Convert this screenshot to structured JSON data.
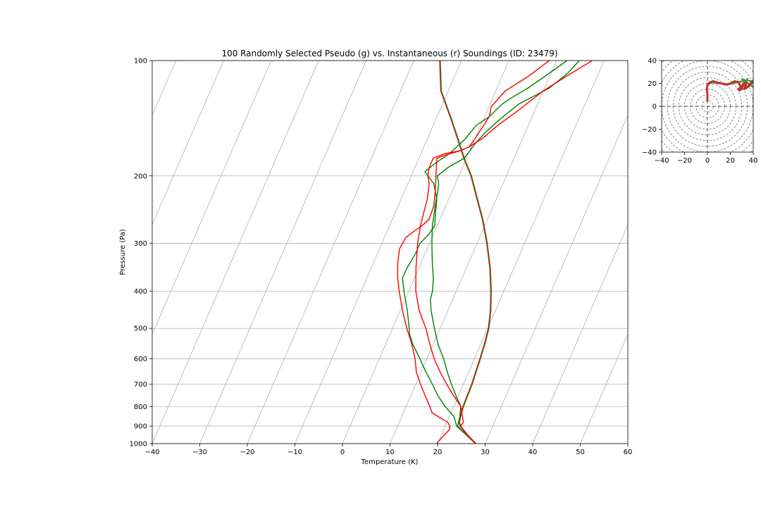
{
  "chart_data": [
    {
      "type": "line",
      "subtype": "skew-t",
      "title": "100 Randomly Selected Pseudo (g) vs. Instantaneous (r) Soundings (ID: 23479)",
      "xlabel": "Temperature (K)",
      "ylabel": "Pressure (Pa)",
      "xlim": [
        -40,
        60
      ],
      "ylim": [
        1000,
        100
      ],
      "yscale": "log",
      "xticks": [
        -40,
        -30,
        -20,
        -10,
        0,
        10,
        20,
        30,
        40,
        50,
        60
      ],
      "yticks": [
        1000,
        900,
        800,
        700,
        600,
        500,
        400,
        300,
        200,
        100
      ],
      "grid": true,
      "colors": {
        "pseudo": "#008000",
        "instantaneous": "#ff0000",
        "grid": "#b0b0b0"
      },
      "series": [
        {
          "key": "parcel",
          "style": "dashed",
          "points": [
            [
              1000,
              28
            ],
            [
              950,
              25.5
            ],
            [
              900,
              23.2
            ],
            [
              880,
              22.6
            ],
            [
              850,
              22.3
            ],
            [
              800,
              22.0
            ],
            [
              750,
              21.9
            ],
            [
              700,
              21.8
            ],
            [
              650,
              21.5
            ],
            [
              600,
              21.2
            ],
            [
              550,
              20.8
            ],
            [
              500,
              20.2
            ],
            [
              450,
              19.0
            ],
            [
              400,
              17.3
            ],
            [
              350,
              15.1
            ],
            [
              300,
              12.1
            ],
            [
              260,
              9.0
            ],
            [
              230,
              6.0
            ],
            [
              200,
              2.6
            ],
            [
              180,
              -0.5
            ],
            [
              160,
              -3.6
            ],
            [
              140,
              -7.2
            ],
            [
              120,
              -11.5
            ],
            [
              100,
              -14.5
            ]
          ]
        },
        {
          "key": "pseudo-1",
          "points": [
            [
              1000,
              28
            ],
            [
              950,
              25.3
            ],
            [
              900,
              22.6
            ],
            [
              850,
              22.2
            ],
            [
              800,
              21.5
            ],
            [
              750,
              19.5
            ],
            [
              700,
              17.5
            ],
            [
              650,
              15.5
            ],
            [
              600,
              13.5
            ],
            [
              550,
              11.0
            ],
            [
              500,
              8.8
            ],
            [
              450,
              6.5
            ],
            [
              420,
              5.3
            ],
            [
              400,
              5.0
            ],
            [
              370,
              4.0
            ],
            [
              340,
              2.5
            ],
            [
              300,
              0.5
            ],
            [
              270,
              -1.0
            ],
            [
              240,
              -2.2
            ],
            [
              220,
              -3.0
            ],
            [
              210,
              -3.5
            ],
            [
              200,
              -4.5
            ],
            [
              190,
              -3.0
            ],
            [
              180,
              -0.5
            ],
            [
              165,
              0.5
            ],
            [
              155,
              1.5
            ],
            [
              145,
              3.0
            ],
            [
              130,
              6.0
            ],
            [
              118,
              11.0
            ],
            [
              108,
              13.5
            ],
            [
              100,
              14.8
            ]
          ]
        },
        {
          "key": "pseudo-2",
          "points": [
            [
              1000,
              28
            ],
            [
              950,
              25.3
            ],
            [
              900,
              22.4
            ],
            [
              850,
              21.0
            ],
            [
              800,
              18.2
            ],
            [
              750,
              15.7
            ],
            [
              700,
              13.5
            ],
            [
              650,
              11.0
            ],
            [
              600,
              8.5
            ],
            [
              550,
              5.7
            ],
            [
              520,
              4.2
            ],
            [
              500,
              3.5
            ],
            [
              450,
              1.5
            ],
            [
              400,
              -1.0
            ],
            [
              370,
              -2.5
            ],
            [
              350,
              -2.5
            ],
            [
              320,
              -2.0
            ],
            [
              300,
              -2.0
            ],
            [
              285,
              -1.0
            ],
            [
              270,
              -0.5
            ],
            [
              250,
              -1.5
            ],
            [
              230,
              -2.5
            ],
            [
              210,
              -4.5
            ],
            [
              195,
              -7.5
            ],
            [
              185,
              -6.0
            ],
            [
              175,
              -4.0
            ],
            [
              160,
              -2.0
            ],
            [
              148,
              -1.0
            ],
            [
              140,
              1.0
            ],
            [
              130,
              2.5
            ],
            [
              125,
              4.0
            ],
            [
              118,
              6.5
            ],
            [
              110,
              9.0
            ],
            [
              100,
              12.2
            ]
          ]
        },
        {
          "key": "inst-1",
          "points": [
            [
              1000,
              19.8
            ],
            [
              950,
              20.6
            ],
            [
              920,
              21.2
            ],
            [
              900,
              21.0
            ],
            [
              880,
              20.2
            ],
            [
              860,
              18.5
            ],
            [
              830,
              16.0
            ],
            [
              800,
              15.0
            ],
            [
              750,
              13.0
            ],
            [
              700,
              11.0
            ],
            [
              650,
              9.0
            ],
            [
              600,
              7.5
            ],
            [
              550,
              5.5
            ],
            [
              500,
              3.0
            ],
            [
              450,
              0.5
            ],
            [
              400,
              -2.0
            ],
            [
              370,
              -3.5
            ],
            [
              340,
              -4.8
            ],
            [
              310,
              -5.8
            ],
            [
              290,
              -5.5
            ],
            [
              280,
              -4.5
            ],
            [
              270,
              -3.2
            ],
            [
              260,
              -2.3
            ],
            [
              240,
              -2.5
            ],
            [
              220,
              -3.5
            ],
            [
              200,
              -4.8
            ],
            [
              190,
              -5.5
            ],
            [
              180,
              -6.2
            ],
            [
              177,
              -5.0
            ],
            [
              172,
              -2.0
            ],
            [
              168,
              -0.5
            ],
            [
              160,
              0
            ],
            [
              150,
              0.5
            ],
            [
              140,
              1.0
            ],
            [
              132,
              0.5
            ],
            [
              120,
              2.0
            ],
            [
              110,
              5.5
            ],
            [
              100,
              8.5
            ]
          ]
        },
        {
          "key": "inst-2",
          "points": [
            [
              1000,
              28
            ],
            [
              950,
              25.5
            ],
            [
              900,
              23.2
            ],
            [
              880,
              23.5
            ],
            [
              860,
              23.0
            ],
            [
              800,
              21.5
            ],
            [
              750,
              19.0
            ],
            [
              700,
              16.5
            ],
            [
              650,
              14.0
            ],
            [
              600,
              11.5
            ],
            [
              550,
              9.3
            ],
            [
              500,
              7.0
            ],
            [
              450,
              4.0
            ],
            [
              400,
              1.5
            ],
            [
              350,
              -0.5
            ],
            [
              300,
              -2.5
            ],
            [
              270,
              -3.5
            ],
            [
              250,
              -4.0
            ],
            [
              230,
              -4.5
            ],
            [
              210,
              -5.5
            ],
            [
              200,
              -6.5
            ],
            [
              190,
              -7.0
            ],
            [
              180,
              -7.0
            ],
            [
              175,
              -5.0
            ],
            [
              172,
              -2.0
            ],
            [
              168,
              -0.5
            ],
            [
              160,
              1.5
            ],
            [
              148,
              3.5
            ],
            [
              135,
              6.5
            ],
            [
              120,
              10.0
            ],
            [
              110,
              13.5
            ],
            [
              100,
              17.5
            ]
          ]
        }
      ]
    },
    {
      "type": "line",
      "subtype": "hodograph",
      "xlim": [
        -40,
        40
      ],
      "ylim": [
        -40,
        40
      ],
      "xticks": [
        -40,
        -20,
        0,
        20,
        40
      ],
      "yticks": [
        -40,
        -20,
        0,
        20,
        40
      ],
      "range_rings": [
        5,
        10,
        15,
        20,
        25,
        30,
        35,
        40,
        45,
        50,
        55
      ],
      "series": [
        {
          "key": "pseudo",
          "points": [
            [
              0,
              5
            ],
            [
              0,
              10
            ],
            [
              -0.5,
              15
            ],
            [
              0,
              18
            ],
            [
              2,
              20
            ],
            [
              5,
              21
            ],
            [
              9,
              20
            ],
            [
              14,
              20
            ],
            [
              18,
              19
            ],
            [
              22,
              20
            ],
            [
              26,
              21
            ],
            [
              30,
              22
            ],
            [
              34,
              23
            ],
            [
              38,
              22
            ],
            [
              40,
              21
            ],
            [
              36,
              17
            ],
            [
              32,
              18
            ],
            [
              29,
              16
            ],
            [
              31,
              20
            ],
            [
              35,
              24
            ],
            [
              33,
              22
            ],
            [
              30,
              24
            ],
            [
              37,
              19
            ],
            [
              41,
              16
            ]
          ]
        },
        {
          "key": "instantaneous",
          "points": [
            [
              0,
              5
            ],
            [
              0,
              10
            ],
            [
              -0.5,
              15
            ],
            [
              0,
              19
            ],
            [
              2,
              21
            ],
            [
              5,
              22
            ],
            [
              8,
              21
            ],
            [
              12,
              20
            ],
            [
              16,
              19
            ],
            [
              20,
              20
            ],
            [
              24,
              22
            ],
            [
              27,
              21
            ],
            [
              29,
              17
            ],
            [
              27,
              15
            ],
            [
              28,
              14
            ],
            [
              30,
              15
            ],
            [
              31,
              19
            ],
            [
              34,
              21
            ],
            [
              33,
              17
            ],
            [
              32,
              15
            ],
            [
              34,
              16
            ],
            [
              37,
              19
            ],
            [
              39,
              22
            ],
            [
              41,
              23
            ]
          ]
        }
      ]
    }
  ]
}
